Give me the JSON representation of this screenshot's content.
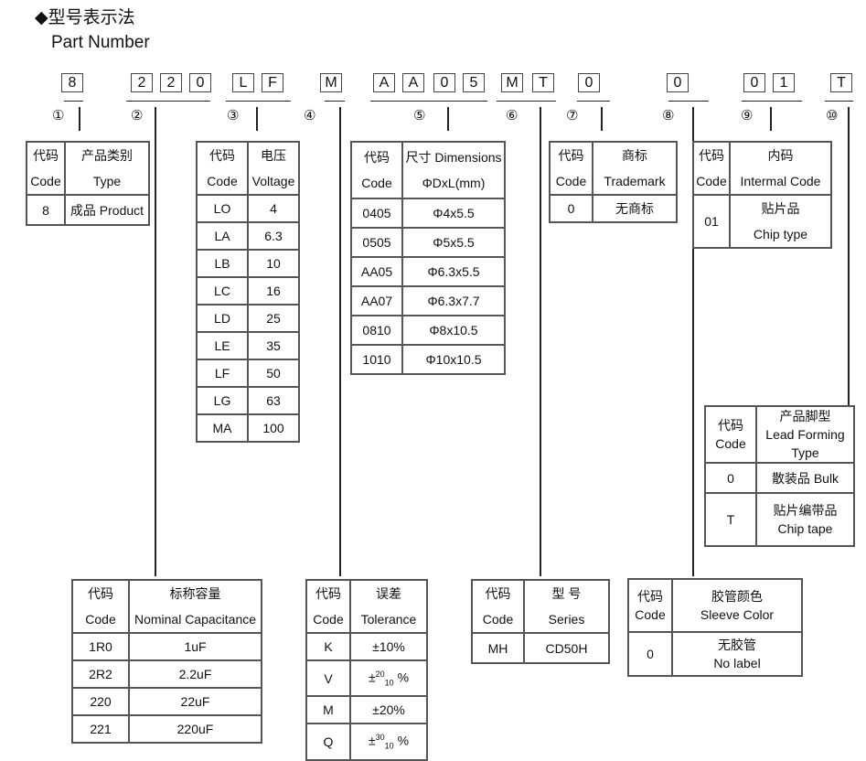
{
  "title": "◆型号表示法",
  "subtitle": "Part Number",
  "part_number": {
    "characters": [
      "8",
      "2",
      "2",
      "0",
      "L",
      "F",
      "M",
      "A",
      "A",
      "0",
      "5",
      "M",
      "T",
      "0",
      "0",
      "0",
      "1",
      "T"
    ],
    "group_labels": [
      "①",
      "②",
      "③",
      "④",
      "⑤",
      "⑥",
      "⑦",
      "⑧",
      "⑨",
      "⑩"
    ]
  },
  "tables": {
    "product_type": {
      "header": [
        [
          "代码",
          "Code"
        ],
        [
          "产品类别",
          "Type"
        ]
      ],
      "rows": [
        [
          [
            "8"
          ],
          [
            "成品 Product"
          ]
        ]
      ]
    },
    "voltage": {
      "header": [
        [
          "代码",
          "Code"
        ],
        [
          "电压",
          "Voltage"
        ]
      ],
      "rows": [
        [
          [
            "LO"
          ],
          [
            "4"
          ]
        ],
        [
          [
            "LA"
          ],
          [
            "6.3"
          ]
        ],
        [
          [
            "LB"
          ],
          [
            "10"
          ]
        ],
        [
          [
            "LC"
          ],
          [
            "16"
          ]
        ],
        [
          [
            "LD"
          ],
          [
            "25"
          ]
        ],
        [
          [
            "LE"
          ],
          [
            "35"
          ]
        ],
        [
          [
            "LF"
          ],
          [
            "50"
          ]
        ],
        [
          [
            "LG"
          ],
          [
            "63"
          ]
        ],
        [
          [
            "MA"
          ],
          [
            "100"
          ]
        ]
      ]
    },
    "dimensions": {
      "header": [
        [
          "代码",
          "Code"
        ],
        [
          "尺寸 Dimensions",
          "ΦDxL(mm)"
        ]
      ],
      "rows": [
        [
          [
            "0405"
          ],
          [
            "Φ4x5.5"
          ]
        ],
        [
          [
            "0505"
          ],
          [
            "Φ5x5.5"
          ]
        ],
        [
          [
            "AA05"
          ],
          [
            "Φ6.3x5.5"
          ]
        ],
        [
          [
            "AA07"
          ],
          [
            "Φ6.3x7.7"
          ]
        ],
        [
          [
            "0810"
          ],
          [
            "Φ8x10.5"
          ]
        ],
        [
          [
            "1010"
          ],
          [
            "Φ10x10.5"
          ]
        ]
      ]
    },
    "trademark": {
      "header": [
        [
          "代码",
          "Code"
        ],
        [
          "商标",
          "Trademark"
        ]
      ],
      "rows": [
        [
          [
            "0"
          ],
          [
            "无商标"
          ]
        ]
      ]
    },
    "internal_code": {
      "header": [
        [
          "代码",
          "Code"
        ],
        [
          "内码",
          "Intermal Code"
        ]
      ],
      "rows": [
        [
          [
            "01"
          ],
          [
            "贴片品",
            "Chip type"
          ]
        ]
      ]
    },
    "lead_forming": {
      "header": [
        [
          "代码",
          "Code"
        ],
        [
          "产品脚型",
          "Lead Forming",
          "Type"
        ]
      ],
      "rows": [
        [
          [
            "0"
          ],
          [
            "散装品 Bulk"
          ]
        ],
        [
          [
            "T"
          ],
          [
            "贴片编带品",
            "Chip tape"
          ]
        ]
      ]
    },
    "capacitance": {
      "header": [
        [
          "代码",
          "Code"
        ],
        [
          "标称容量",
          "Nominal Capacitance"
        ]
      ],
      "rows": [
        [
          [
            "1R0"
          ],
          [
            "1uF"
          ]
        ],
        [
          [
            "2R2"
          ],
          [
            "2.2uF"
          ]
        ],
        [
          [
            "220"
          ],
          [
            "22uF"
          ]
        ],
        [
          [
            "221"
          ],
          [
            "220uF"
          ]
        ]
      ]
    },
    "tolerance": {
      "header": [
        [
          "代码",
          "Code"
        ],
        [
          "误差",
          "Tolerance"
        ]
      ],
      "rows": [
        [
          [
            "K"
          ],
          [
            "±10%"
          ]
        ],
        [
          [
            "V"
          ],
          {
            "pm": "±",
            "sup": "20",
            "sub": "10",
            "unit": "%"
          }
        ],
        [
          [
            "M"
          ],
          [
            "±20%"
          ]
        ],
        [
          [
            "Q"
          ],
          {
            "pm": "±",
            "sup": "30",
            "sub": "10",
            "unit": "%"
          }
        ]
      ]
    },
    "series": {
      "header": [
        [
          "代码",
          "Code"
        ],
        [
          "型 号",
          "Series"
        ]
      ],
      "rows": [
        [
          [
            "MH"
          ],
          [
            "CD50H"
          ]
        ]
      ]
    },
    "sleeve_color": {
      "header": [
        [
          "代码",
          "Code"
        ],
        [
          "胶管颜色",
          "Sleeve Color"
        ]
      ],
      "rows": [
        [
          [
            "0"
          ],
          [
            "无胶管",
            "No label"
          ]
        ]
      ]
    }
  }
}
